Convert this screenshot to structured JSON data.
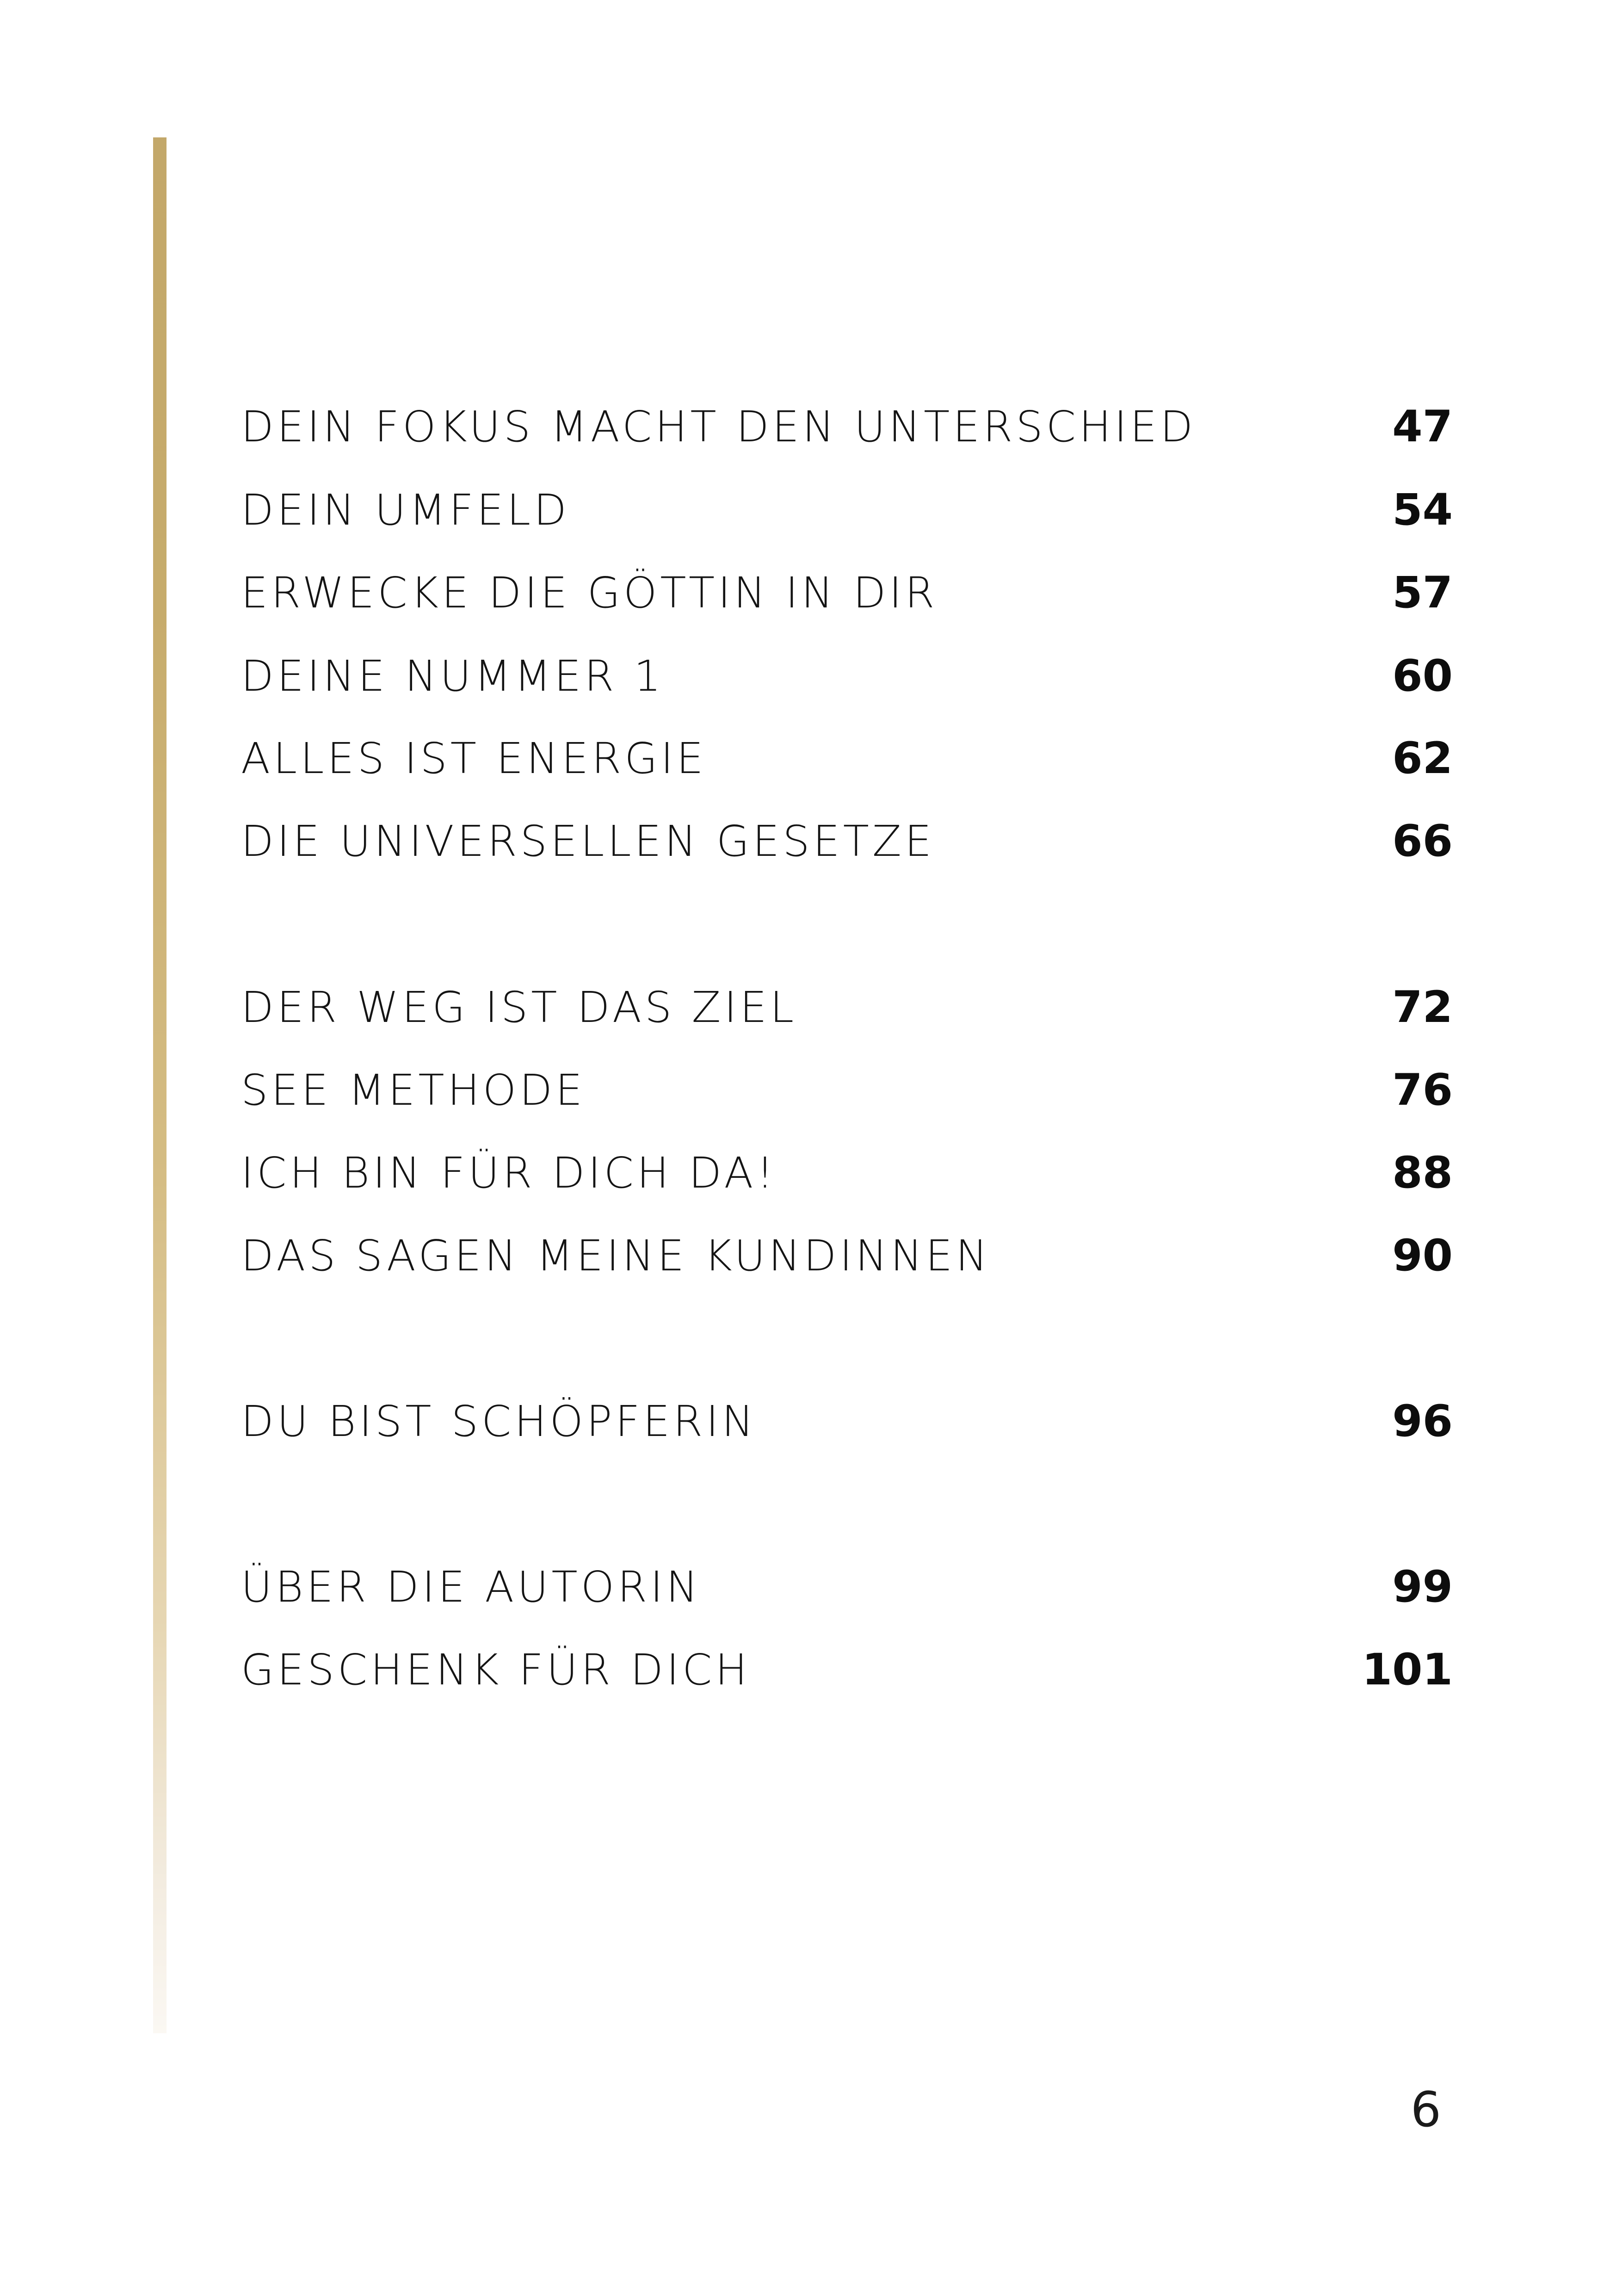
{
  "toc": {
    "groups": [
      {
        "entries": [
          {
            "title": "DEIN FOKUS MACHT DEN UNTERSCHIED",
            "page": "47"
          },
          {
            "title": "DEIN UMFELD",
            "page": "54"
          },
          {
            "title": "ERWECKE DIE GÖTTIN IN DIR",
            "page": "57"
          },
          {
            "title": "DEINE NUMMER 1",
            "page": "60"
          },
          {
            "title": "ALLES IST ENERGIE",
            "page": "62"
          },
          {
            "title": "DIE UNIVERSELLEN GESETZE",
            "page": "66"
          }
        ]
      },
      {
        "entries": [
          {
            "title": "DER WEG IST DAS ZIEL",
            "page": "72"
          },
          {
            "title": "SEE METHODE",
            "page": "76"
          },
          {
            "title": "ICH BIN FÜR DICH DA!",
            "page": "88"
          },
          {
            "title": "DAS SAGEN MEINE KUNDINNEN",
            "page": "90"
          }
        ]
      },
      {
        "entries": [
          {
            "title": "DU BIST SCHÖPFERIN",
            "page": "96"
          }
        ]
      },
      {
        "entries": [
          {
            "title": "ÜBER DIE AUTORIN",
            "page": "99"
          },
          {
            "title": "GESCHENK FÜR DICH",
            "page": "101"
          }
        ]
      }
    ]
  },
  "page_number": "6",
  "colors": {
    "accent_gold": "#c3a86a",
    "text": "#141414",
    "background": "#ffffff"
  }
}
